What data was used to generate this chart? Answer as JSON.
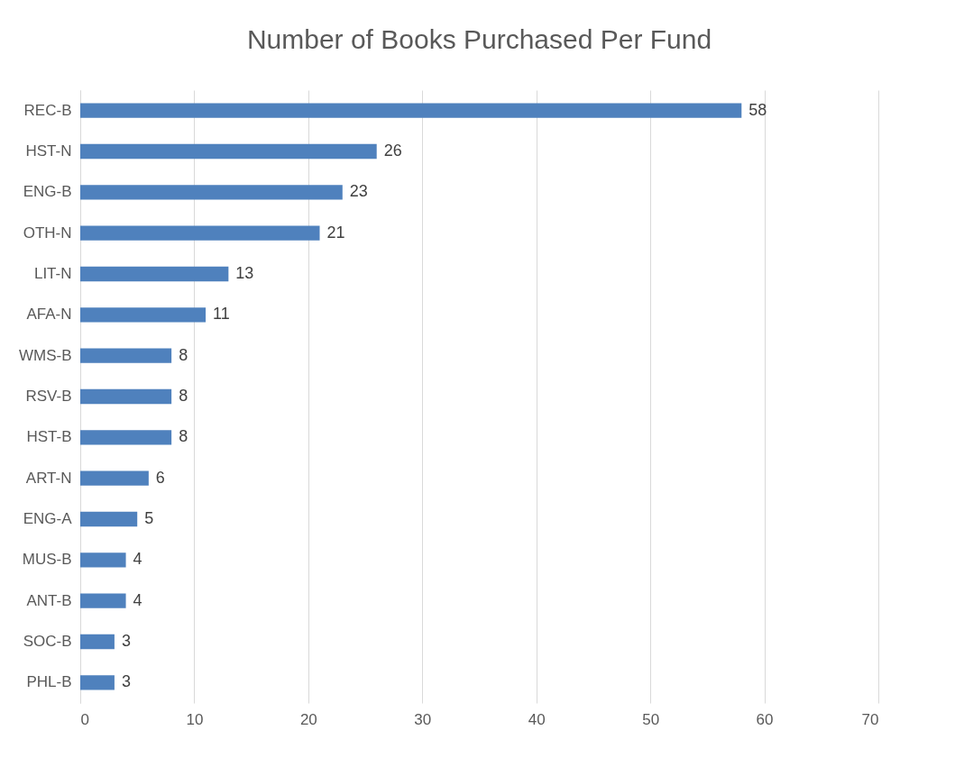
{
  "chart_data": {
    "type": "bar",
    "orientation": "horizontal",
    "title": "Number of Books Purchased Per Fund",
    "categories": [
      "REC-B",
      "HST-N",
      "ENG-B",
      "OTH-N",
      "LIT-N",
      "AFA-N",
      "WMS-B",
      "RSV-B",
      "HST-B",
      "ART-N",
      "ENG-A",
      "MUS-B",
      "ANT-B",
      "SOC-B",
      "PHL-B"
    ],
    "values": [
      58,
      26,
      23,
      21,
      13,
      11,
      8,
      8,
      8,
      6,
      5,
      4,
      4,
      3,
      3
    ],
    "color": "#4f81bd",
    "xlim": [
      0,
      70
    ],
    "xticks": [
      0,
      10,
      20,
      30,
      40,
      50,
      60,
      70
    ],
    "grid": "x",
    "data_labels": true
  }
}
